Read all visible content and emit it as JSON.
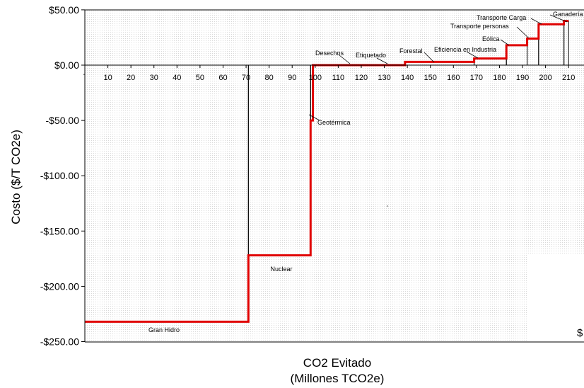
{
  "chart_data": {
    "type": "step",
    "xlabel": "CO2 Evitado",
    "xlabel_sub": "(Millones TCO2e)",
    "ylabel": "Costo ($/T CO2e)",
    "xlim": [
      0,
      215
    ],
    "ylim": [
      -250,
      50
    ],
    "x_ticks": [
      10,
      20,
      30,
      40,
      50,
      60,
      70,
      80,
      90,
      100,
      110,
      120,
      130,
      140,
      150,
      160,
      170,
      180,
      190,
      200,
      210
    ],
    "x_tick_labels": [
      "10",
      "20",
      "30",
      "40",
      "50",
      "60",
      "70",
      "80",
      "90",
      "100",
      "110",
      "120",
      "130",
      "140",
      "150",
      "160",
      "170",
      "180",
      "190",
      "200",
      "210"
    ],
    "y_ticks": [
      50,
      0,
      -50,
      -100,
      -150,
      -200,
      -250
    ],
    "y_tick_labels": [
      "$50.00",
      "$0.00",
      "-$50.00",
      "-$100.00",
      "-$150.00",
      "-$200.00",
      "-$250.00"
    ],
    "line_color": "#e00000",
    "segments": [
      {
        "name": "Gran Hidro",
        "x_start": 0,
        "x_end": 71,
        "cost": -232
      },
      {
        "name": "Nuclear",
        "x_start": 71,
        "x_end": 98,
        "cost": -172
      },
      {
        "name": "Geotérmica",
        "x_start": 98,
        "x_end": 99,
        "cost": -50
      },
      {
        "name": "Desechos",
        "x_start": 99,
        "x_end": 117,
        "cost": 0
      },
      {
        "name": "Etiquetado",
        "x_start": 117,
        "x_end": 139,
        "cost": 0
      },
      {
        "name": "Forestal",
        "x_start": 139,
        "x_end": 169,
        "cost": 3
      },
      {
        "name": "Eficiencia en Industria",
        "x_start": 169,
        "x_end": 183,
        "cost": 6
      },
      {
        "name": "Eólica",
        "x_start": 183,
        "x_end": 192,
        "cost": 18
      },
      {
        "name": "Transporte personas",
        "x_start": 192,
        "x_end": 197,
        "cost": 24
      },
      {
        "name": "Transporte Carga",
        "x_start": 197,
        "x_end": 208,
        "cost": 37
      },
      {
        "name": "Ganadería",
        "x_start": 208,
        "x_end": 210,
        "cost": 40
      }
    ],
    "stray_text": "$"
  }
}
